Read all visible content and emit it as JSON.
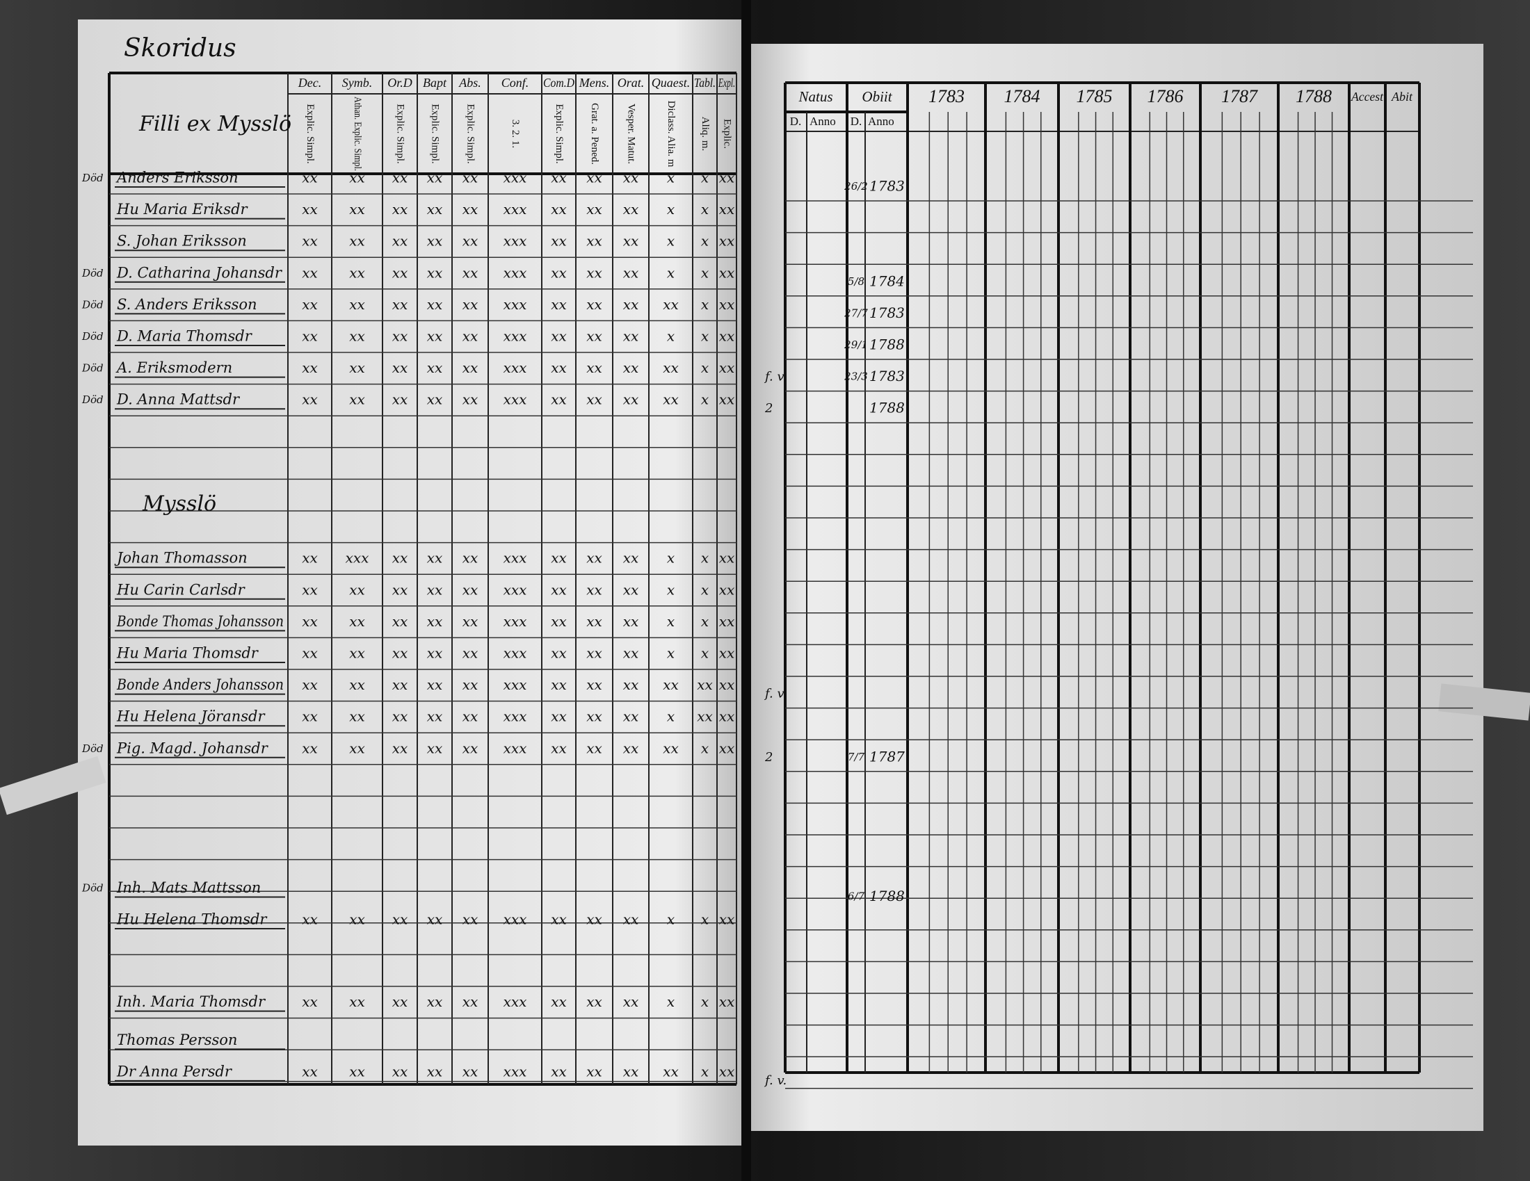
{
  "left_page": {
    "corner_note": "Skoridus",
    "name_header": "Filli ex Mysslö",
    "columns": [
      {
        "top": "Dec.",
        "sub": "Explic. Simpl."
      },
      {
        "top": "Symb.",
        "sub": "Athan. Explic. Simpl."
      },
      {
        "top": "Or.D",
        "sub": "Explic. Simpl."
      },
      {
        "top": "Bapt",
        "sub": "Explic. Simpl."
      },
      {
        "top": "Abs.",
        "sub": "Explic. Simpl."
      },
      {
        "top": "Conf.",
        "sub": "3. 2. 1."
      },
      {
        "top": "Com.D",
        "sub": "Explic. Simpl."
      },
      {
        "top": "Mens.",
        "sub": "Grat. a. Pened."
      },
      {
        "top": "Orat.",
        "sub": "Vesper. Matut."
      },
      {
        "top": "Quaest.",
        "sub": "Diclass. Alia. m"
      },
      {
        "top": "Tabl.",
        "sub": "Aliq. m."
      },
      {
        "top": "Expl.",
        "sub": "Explic."
      }
    ],
    "sections": [
      {
        "heading": null,
        "rows": [
          {
            "note": "Död",
            "name": "Anders Eriksson",
            "marks": [
              "xx",
              "xx",
              "xx",
              "xx",
              "xx",
              "xxx",
              "xx",
              "xx",
              "xx",
              "x",
              "x",
              "xx"
            ]
          },
          {
            "note": null,
            "name": "Hu Maria Eriksdr",
            "marks": [
              "xx",
              "xx",
              "xx",
              "xx",
              "xx",
              "xxx",
              "xx",
              "xx",
              "xx",
              "x",
              "x",
              "xx"
            ]
          },
          {
            "note": null,
            "name": "S. Johan Eriksson",
            "marks": [
              "xx",
              "xx",
              "xx",
              "xx",
              "xx",
              "xxx",
              "xx",
              "xx",
              "xx",
              "x",
              "x",
              "xx"
            ]
          },
          {
            "note": "Död",
            "name": "D. Catharina Johansdr",
            "marks": [
              "xx",
              "xx",
              "xx",
              "xx",
              "xx",
              "xxx",
              "xx",
              "xx",
              "xx",
              "x",
              "x",
              "xx"
            ]
          },
          {
            "note": "Död",
            "name": "S. Anders Eriksson",
            "marks": [
              "xx",
              "xx",
              "xx",
              "xx",
              "xx",
              "xxx",
              "xx",
              "xx",
              "xx",
              "xx",
              "x",
              "xx"
            ]
          },
          {
            "note": "Död",
            "name": "D. Maria Thomsdr",
            "marks": [
              "xx",
              "xx",
              "xx",
              "xx",
              "xx",
              "xxx",
              "xx",
              "xx",
              "xx",
              "x",
              "x",
              "xx"
            ]
          },
          {
            "note": "Död",
            "name": "A. Eriksmodern",
            "marks": [
              "xx",
              "xx",
              "xx",
              "xx",
              "xx",
              "xxx",
              "xx",
              "xx",
              "xx",
              "xx",
              "x",
              "xx"
            ]
          },
          {
            "note": "Död",
            "name": "D. Anna Mattsdr",
            "marks": [
              "xx",
              "xx",
              "xx",
              "xx",
              "xx",
              "xxx",
              "xx",
              "xx",
              "xx",
              "xx",
              "x",
              "xx"
            ]
          }
        ]
      },
      {
        "heading": "Mysslö",
        "rows": [
          {
            "note": null,
            "name": "Johan Thomasson",
            "marks": [
              "xx",
              "xxx",
              "xx",
              "xx",
              "xx",
              "xxx",
              "xx",
              "xx",
              "xx",
              "x",
              "x",
              "xx"
            ]
          },
          {
            "note": null,
            "name": "Hu Carin Carlsdr",
            "marks": [
              "xx",
              "xx",
              "xx",
              "xx",
              "xx",
              "xxx",
              "xx",
              "xx",
              "xx",
              "x",
              "x",
              "xx"
            ]
          },
          {
            "note": null,
            "name": "Bonde Thomas Johansson",
            "marks": [
              "xx",
              "xx",
              "xx",
              "xx",
              "xx",
              "xxx",
              "xx",
              "xx",
              "xx",
              "x",
              "x",
              "xx"
            ]
          },
          {
            "note": null,
            "name": "Hu Maria Thomsdr",
            "marks": [
              "xx",
              "xx",
              "xx",
              "xx",
              "xx",
              "xxx",
              "xx",
              "xx",
              "xx",
              "x",
              "x",
              "xx"
            ]
          },
          {
            "note": null,
            "name": "Bonde Anders Johansson",
            "marks": [
              "xx",
              "xx",
              "xx",
              "xx",
              "xx",
              "xxx",
              "xx",
              "xx",
              "xx",
              "xx",
              "xx",
              "xx"
            ]
          },
          {
            "note": null,
            "name": "Hu Helena Jöransdr",
            "marks": [
              "xx",
              "xx",
              "xx",
              "xx",
              "xx",
              "xxx",
              "xx",
              "xx",
              "xx",
              "x",
              "xx",
              "xx"
            ]
          },
          {
            "note": "Död",
            "name": "Pig. Magd. Johansdr",
            "marks": [
              "xx",
              "xx",
              "xx",
              "xx",
              "xx",
              "xxx",
              "xx",
              "xx",
              "xx",
              "xx",
              "x",
              "xx"
            ]
          }
        ]
      },
      {
        "heading": null,
        "rows": [
          {
            "note": "Död",
            "name": "Inh. Mats Mattsson",
            "marks": null
          },
          {
            "note": null,
            "name": "Hu Helena Thomsdr",
            "marks": [
              "xx",
              "xx",
              "xx",
              "xx",
              "xx",
              "xxx",
              "xx",
              "xx",
              "xx",
              "x",
              "x",
              "xx"
            ]
          }
        ]
      },
      {
        "heading": null,
        "rows": [
          {
            "note": null,
            "name": "Inh. Maria Thomsdr",
            "marks": [
              "xx",
              "xx",
              "xx",
              "xx",
              "xx",
              "xxx",
              "xx",
              "xx",
              "xx",
              "x",
              "x",
              "xx"
            ]
          },
          {
            "note": null,
            "name": "Thomas Persson",
            "marks": null
          },
          {
            "note": null,
            "name": "Dr Anna Persdr",
            "marks": [
              "xx",
              "xx",
              "xx",
              "xx",
              "xx",
              "xxx",
              "xx",
              "xx",
              "xx",
              "xx",
              "x",
              "xx"
            ]
          }
        ]
      }
    ]
  },
  "right_page": {
    "natus": "Natus",
    "obiit": "Obiit",
    "day": "D.",
    "anno": "Anno",
    "years": [
      "1783",
      "1784",
      "1785",
      "1786",
      "1787",
      "1788"
    ],
    "accest": "Accest",
    "abit": "Abit",
    "sections": [
      {
        "rows": [
          {
            "margin": null,
            "day": "26/2",
            "year": "1783"
          },
          null,
          null,
          {
            "margin": null,
            "day": "5/8",
            "year": "1784"
          },
          {
            "margin": null,
            "day": "27/7",
            "year": "1783"
          },
          {
            "margin": null,
            "day": "29/1",
            "year": "1788"
          },
          {
            "margin": "f. v.",
            "day": "23/3",
            "year": "1783"
          },
          {
            "margin": "2",
            "day": null,
            "year": "1788"
          }
        ]
      },
      {
        "rows": [
          null,
          null,
          null,
          null,
          {
            "margin": "f. v.",
            "day": null,
            "year": null
          },
          null,
          {
            "margin": "2",
            "day": "7/7",
            "year": "1787"
          }
        ]
      },
      {
        "rows": [
          {
            "margin": null,
            "day": "6/7",
            "year": "1788"
          },
          null
        ]
      },
      {
        "rows": [
          null,
          null,
          {
            "margin": "f. v.",
            "day": null,
            "year": null
          }
        ]
      }
    ]
  }
}
